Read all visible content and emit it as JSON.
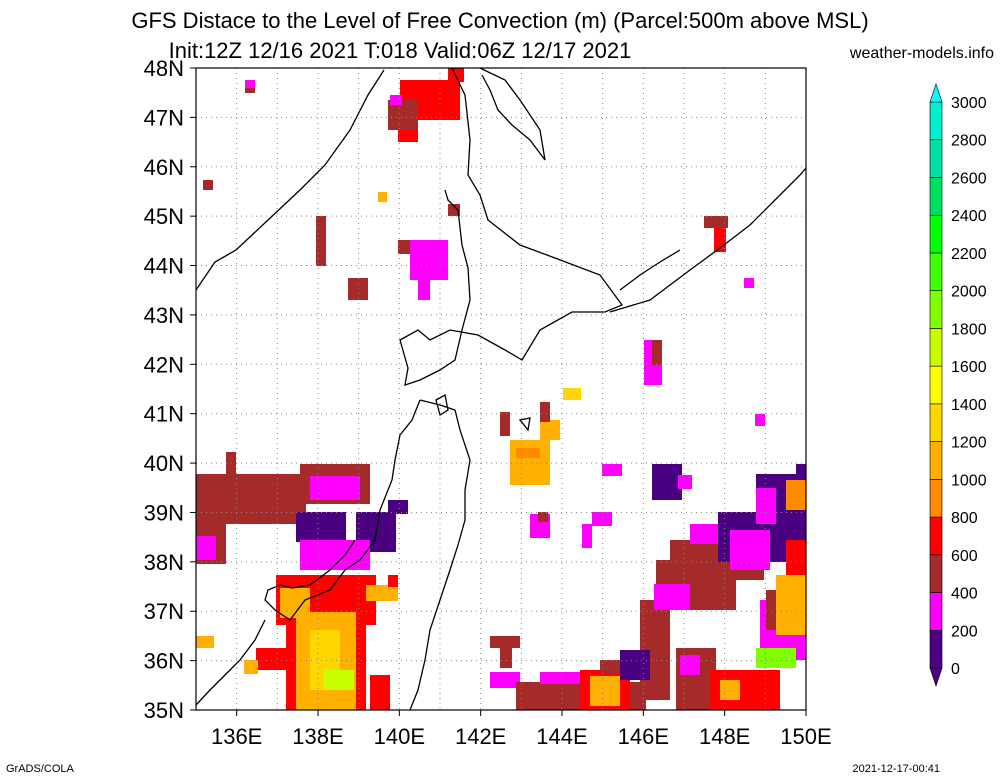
{
  "title_line1": "GFS Distace to the Level of Free Convection (m) (Parcel:500m above MSL)",
  "title_line2": "Init:12Z 12/16 2021 T:018 Valid:06Z 12/17 2021",
  "site": "weather-models.info",
  "footer_left": "GrADS/COLA",
  "footer_right": "2021-12-17-00:41",
  "map_extent": {
    "lon_min": 135,
    "lon_max": 150,
    "lat_min": 35,
    "lat_max": 48
  },
  "lat_labels": [
    "35N",
    "36N",
    "37N",
    "38N",
    "39N",
    "40N",
    "41N",
    "42N",
    "43N",
    "44N",
    "45N",
    "46N",
    "47N",
    "48N"
  ],
  "lon_labels": [
    "136E",
    "138E",
    "140E",
    "142E",
    "144E",
    "146E",
    "148E",
    "150E"
  ],
  "colorbar": {
    "labels": [
      "0",
      "200",
      "400",
      "600",
      "800",
      "1000",
      "1200",
      "1400",
      "1600",
      "1800",
      "2000",
      "2200",
      "2400",
      "2600",
      "2800",
      "3000"
    ],
    "colors": [
      "#4b0082",
      "#ff00ff",
      "#a52a2a",
      "#ff0000",
      "#ff8c00",
      "#ffb000",
      "#ffd700",
      "#ffff00",
      "#c8ff00",
      "#80ff00",
      "#40ff00",
      "#00ff00",
      "#00e060",
      "#00e0a0",
      "#00f0d0",
      "#00ffff"
    ]
  }
}
